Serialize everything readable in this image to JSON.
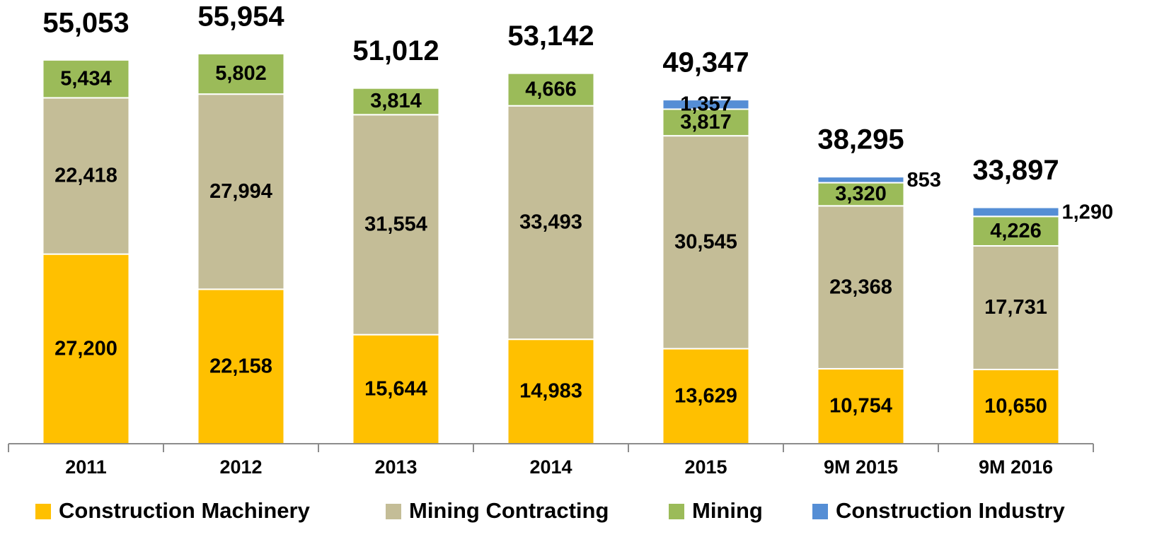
{
  "chart_data": {
    "type": "stacked_bar",
    "categories": [
      "2011",
      "2012",
      "2013",
      "2014",
      "2015",
      "9M 2015",
      "9M 2016"
    ],
    "series": [
      {
        "name": "Construction Machinery",
        "color": "#FFC000",
        "values": [
          27200,
          22158,
          15644,
          14983,
          13629,
          10754,
          10650
        ],
        "value_labels": [
          "27,200",
          "22,158",
          "15,644",
          "14,983",
          "13,629",
          "10,754",
          "10,650"
        ]
      },
      {
        "name": "Mining Contracting",
        "color": "#C4BD97",
        "values": [
          22418,
          27994,
          31554,
          33493,
          30545,
          23368,
          17731
        ],
        "value_labels": [
          "22,418",
          "27,994",
          "31,554",
          "33,493",
          "30,545",
          "23,368",
          "17,731"
        ]
      },
      {
        "name": "Mining",
        "color": "#9BBB59",
        "values": [
          5434,
          5802,
          3814,
          4666,
          3817,
          3320,
          4226
        ],
        "value_labels": [
          "5,434",
          "5,802",
          "3,814",
          "4,666",
          "3,817",
          "3,320",
          "4,226"
        ]
      },
      {
        "name": "Construction Industry",
        "color": "#558ED5",
        "values": [
          null,
          null,
          null,
          null,
          1357,
          853,
          1290
        ],
        "value_labels": [
          null,
          null,
          null,
          null,
          "1,357",
          "853",
          "1,290"
        ]
      }
    ],
    "totals": [
      55053,
      55954,
      51012,
      53142,
      49347,
      38295,
      33897
    ],
    "total_labels": [
      "55,053",
      "55,954",
      "51,012",
      "53,142",
      "49,347",
      "38,295",
      "33,897"
    ],
    "ylim": [
      0,
      60000
    ],
    "legend": "bottom"
  }
}
